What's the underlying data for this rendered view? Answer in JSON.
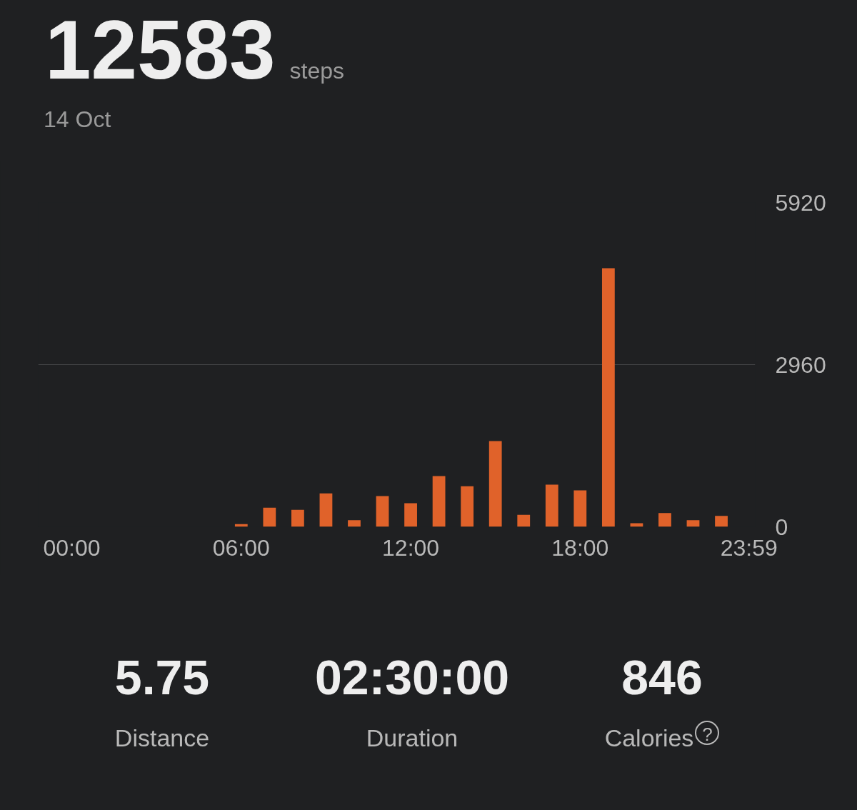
{
  "chart_data": {
    "type": "bar",
    "title": "12583",
    "subtitle": "steps",
    "annotations": [
      "14 Oct",
      "5.75",
      "Distance",
      "02:30:00",
      "Duration",
      "846",
      "Calories",
      "?"
    ],
    "x": [
      6,
      7,
      8,
      9,
      10,
      11,
      12,
      13,
      14,
      15,
      16,
      17,
      18,
      19,
      20,
      21,
      22,
      23
    ],
    "values": [
      50,
      350,
      310,
      610,
      120,
      560,
      430,
      925,
      740,
      1565,
      220,
      770,
      665,
      4720,
      65,
      250,
      120,
      200
    ],
    "color": "#e0622a",
    "xlim": [
      -1.19,
      24.2
    ],
    "xticks": [
      {
        "value": 0,
        "label": "00:00"
      },
      {
        "value": 6,
        "label": "06:00"
      },
      {
        "value": 12,
        "label": "12:00"
      },
      {
        "value": 18,
        "label": "18:00"
      },
      {
        "value": 23.98,
        "label": "23:59"
      }
    ],
    "ylim": [
      0,
      5920
    ],
    "yticks": [
      0,
      2960,
      5920
    ],
    "grid": "y"
  }
}
